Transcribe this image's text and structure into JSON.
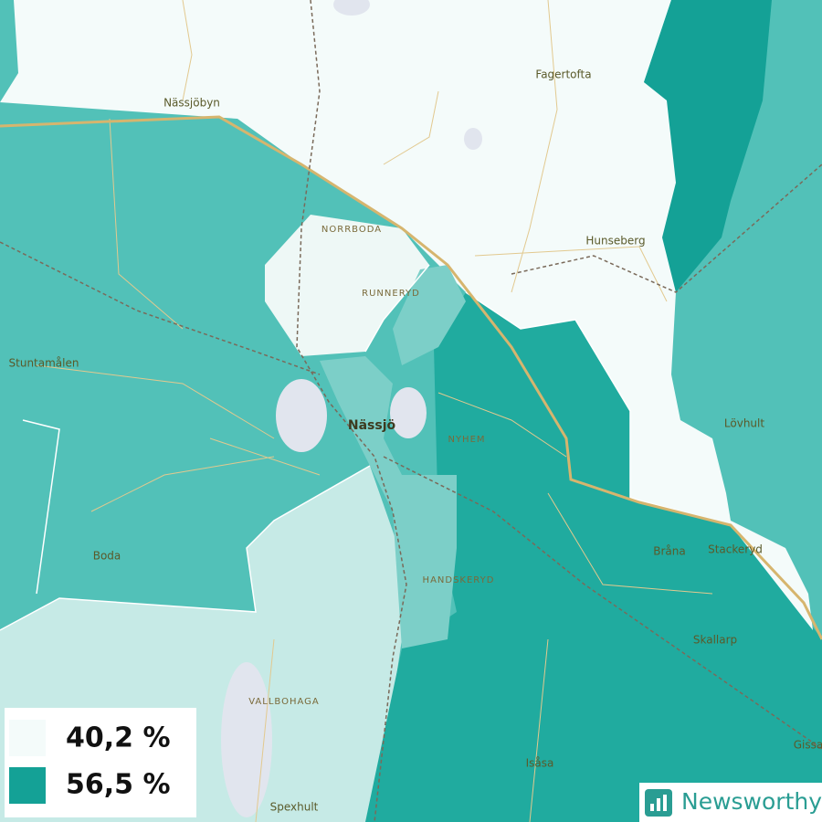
{
  "places": [
    "Nässjöbyn",
    "Fagertofta",
    "NORRBODA",
    "Hunseberg",
    "RUNNERYD",
    "Stuntamålen",
    "Nässjö",
    "NYHEM",
    "Lövhult",
    "Boda",
    "Bråna",
    "Stackeryd",
    "HANDSKERYD",
    "Skallarp",
    "VALLBOHAGA",
    "Isåsa",
    "Gissa",
    "Spexhult"
  ],
  "legend": [
    "40,2 %",
    "56,5 %"
  ],
  "brand": "Newsworthy"
}
